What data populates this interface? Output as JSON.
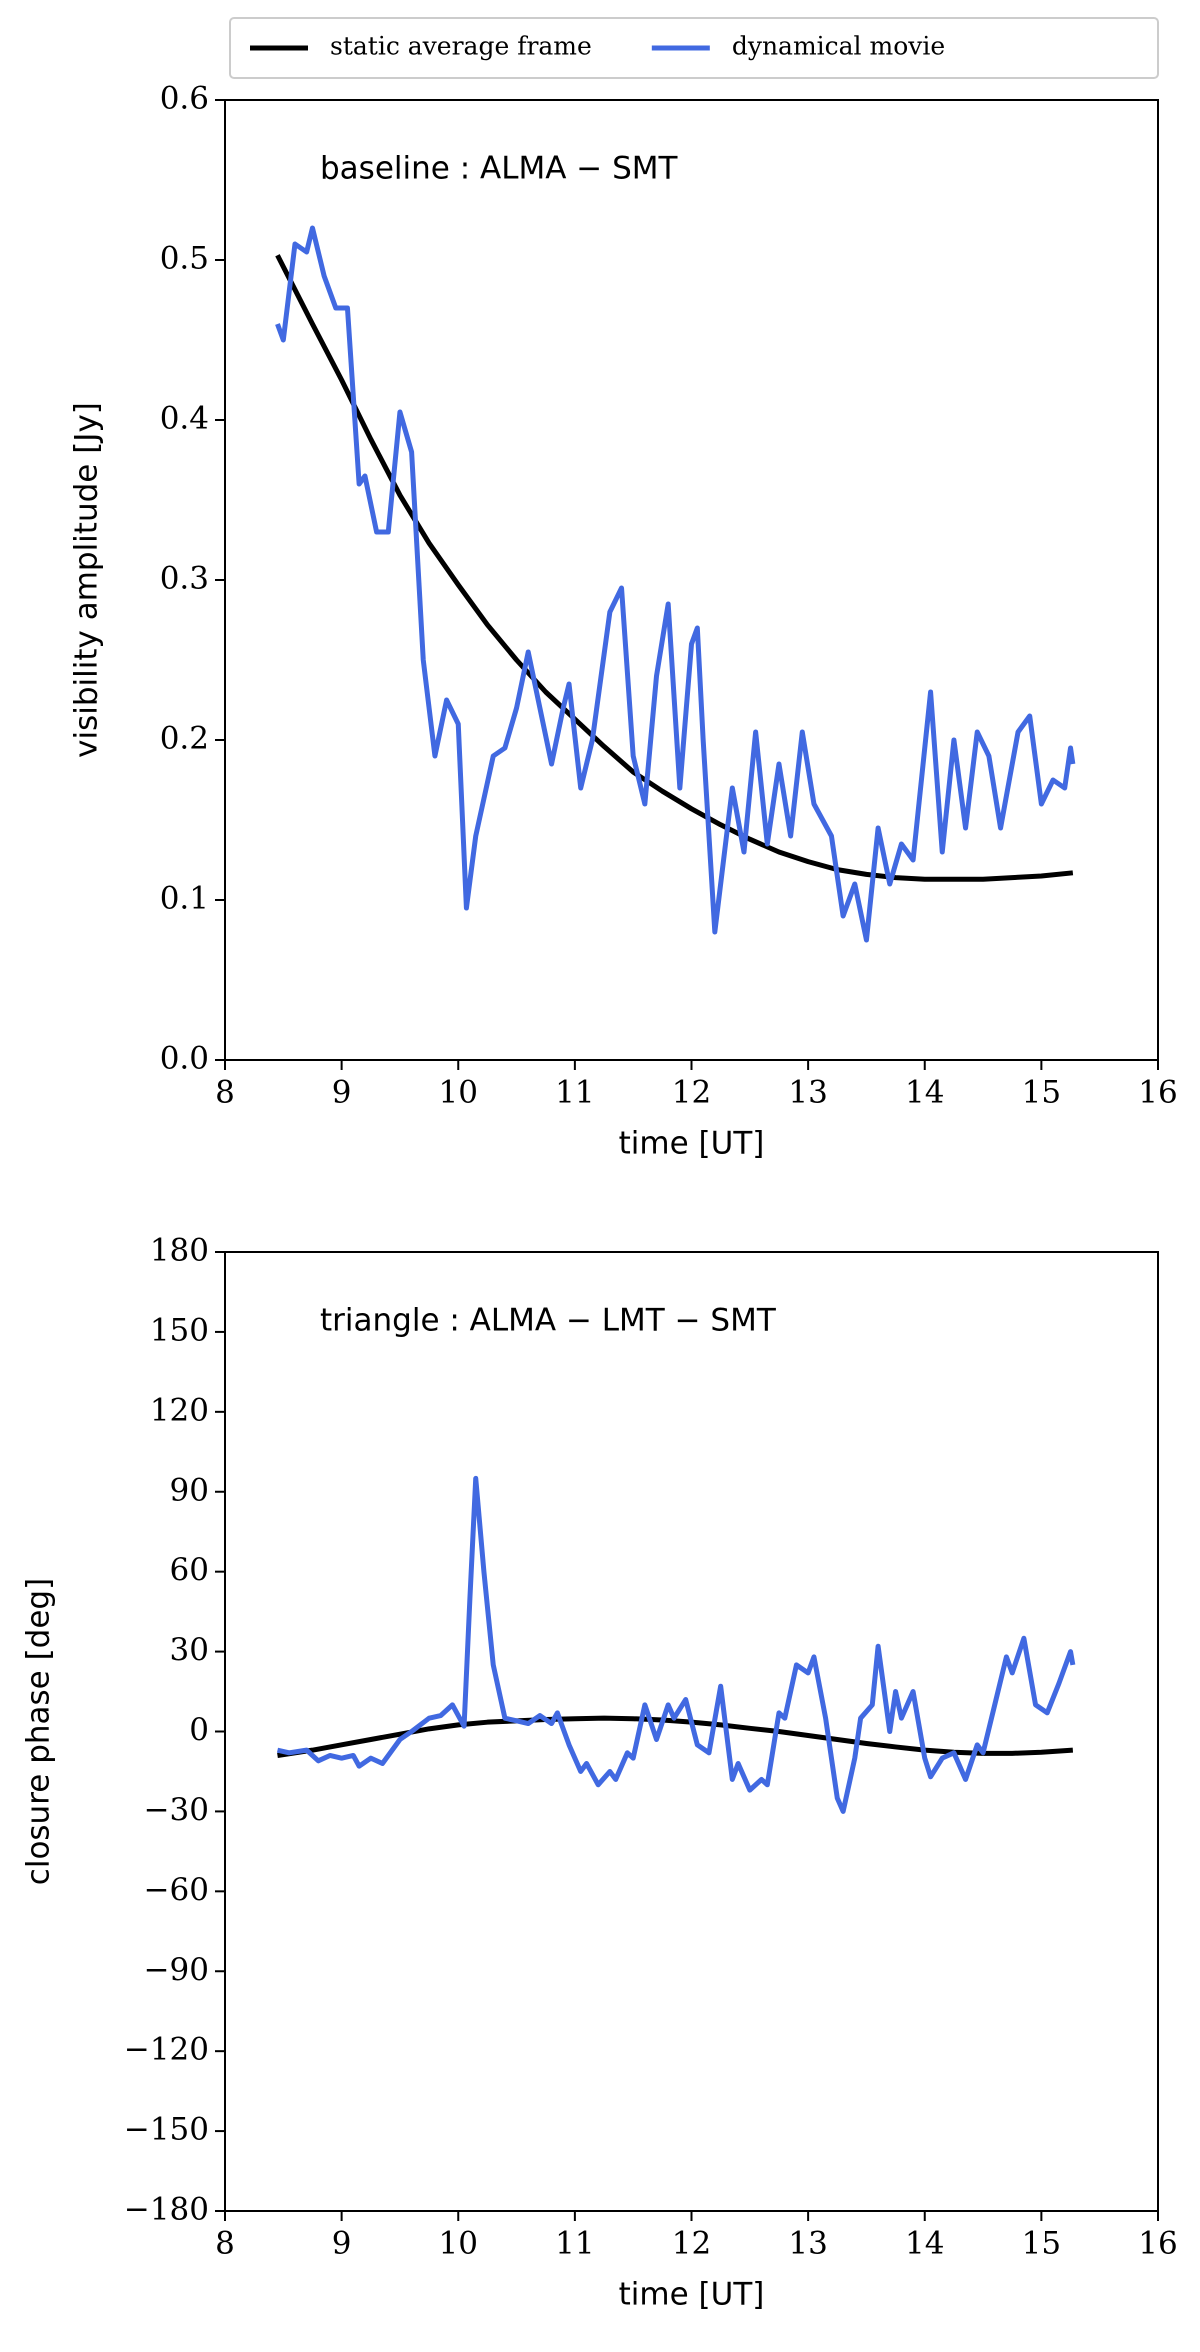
{
  "chart_data": [
    {
      "type": "line",
      "annotation": "baseline : ALMA − SMT",
      "x_label": "time [UT]",
      "y_label": "visibility amplitude [Jy]",
      "xlim": [
        8,
        16
      ],
      "xticks": [
        8,
        9,
        10,
        11,
        12,
        13,
        14,
        15,
        16
      ],
      "ylim": [
        0,
        0.6
      ],
      "yticks": [
        {
          "value": 0,
          "label": "0.0"
        },
        0.1,
        0.2,
        0.3,
        0.4,
        0.5,
        0.6
      ],
      "legend": "top",
      "series": [
        {
          "name": "static average frame",
          "color": "#000000",
          "x": [
            8.45,
            8.75,
            9,
            9.25,
            9.5,
            9.75,
            10,
            10.25,
            10.5,
            10.75,
            11,
            11.25,
            11.5,
            11.75,
            12,
            12.25,
            12.5,
            12.75,
            13,
            13.25,
            13.5,
            13.75,
            14,
            14.25,
            14.5,
            14.75,
            15,
            15.27
          ],
          "values": [
            0.503,
            0.46,
            0.425,
            0.388,
            0.353,
            0.323,
            0.297,
            0.272,
            0.25,
            0.23,
            0.213,
            0.196,
            0.18,
            0.168,
            0.157,
            0.147,
            0.138,
            0.13,
            0.124,
            0.119,
            0.116,
            0.114,
            0.113,
            0.113,
            0.113,
            0.114,
            0.115,
            0.117
          ]
        },
        {
          "name": "dynamical movie",
          "color": "#4169e1",
          "x": [
            8.45,
            8.5,
            8.6,
            8.7,
            8.75,
            8.85,
            8.95,
            9.05,
            9.15,
            9.2,
            9.3,
            9.4,
            9.5,
            9.6,
            9.7,
            9.8,
            9.9,
            10.0,
            10.07,
            10.15,
            10.3,
            10.4,
            10.5,
            10.6,
            10.7,
            10.8,
            10.9,
            10.95,
            11.05,
            11.15,
            11.3,
            11.4,
            11.5,
            11.6,
            11.7,
            11.8,
            11.9,
            12.0,
            12.05,
            12.1,
            12.2,
            12.35,
            12.45,
            12.55,
            12.65,
            12.75,
            12.85,
            12.95,
            13.05,
            13.2,
            13.3,
            13.4,
            13.5,
            13.6,
            13.7,
            13.8,
            13.9,
            14.05,
            14.15,
            14.25,
            14.35,
            14.45,
            14.55,
            14.65,
            14.8,
            14.9,
            15.0,
            15.1,
            15.2,
            15.25,
            15.27
          ],
          "values": [
            0.46,
            0.45,
            0.51,
            0.505,
            0.52,
            0.49,
            0.47,
            0.47,
            0.36,
            0.365,
            0.33,
            0.33,
            0.405,
            0.38,
            0.25,
            0.19,
            0.225,
            0.21,
            0.095,
            0.14,
            0.19,
            0.195,
            0.22,
            0.255,
            0.22,
            0.185,
            0.22,
            0.235,
            0.17,
            0.2,
            0.28,
            0.295,
            0.19,
            0.16,
            0.24,
            0.285,
            0.17,
            0.26,
            0.27,
            0.2,
            0.08,
            0.17,
            0.13,
            0.205,
            0.135,
            0.185,
            0.14,
            0.205,
            0.16,
            0.14,
            0.09,
            0.11,
            0.075,
            0.145,
            0.11,
            0.135,
            0.125,
            0.23,
            0.13,
            0.2,
            0.145,
            0.205,
            0.19,
            0.145,
            0.205,
            0.215,
            0.16,
            0.175,
            0.17,
            0.195,
            0.185
          ]
        }
      ]
    },
    {
      "type": "line",
      "annotation": "triangle : ALMA − LMT − SMT",
      "x_label": "time [UT]",
      "y_label": "closure phase [deg]",
      "xlim": [
        8,
        16
      ],
      "xticks": [
        8,
        9,
        10,
        11,
        12,
        13,
        14,
        15,
        16
      ],
      "ylim": [
        -180,
        180
      ],
      "yticks": [
        {
          "value": -180,
          "label": "−180"
        },
        {
          "value": -150,
          "label": "−150"
        },
        {
          "value": -120,
          "label": "−120"
        },
        {
          "value": -90,
          "label": "−90"
        },
        {
          "value": -60,
          "label": "−60"
        },
        {
          "value": -30,
          "label": "−30"
        },
        0,
        30,
        60,
        90,
        120,
        150,
        180
      ],
      "series": [
        {
          "color": "#000000",
          "x": [
            8.45,
            8.75,
            9,
            9.25,
            9.5,
            9.75,
            10,
            10.25,
            10.5,
            10.75,
            11,
            11.25,
            11.5,
            11.75,
            12,
            12.25,
            12.5,
            12.75,
            13,
            13.25,
            13.5,
            13.75,
            14,
            14.25,
            14.5,
            14.75,
            15,
            15.27
          ],
          "values": [
            -9,
            -7,
            -5,
            -3,
            -1,
            1,
            2.5,
            3.5,
            4,
            4.5,
            4.8,
            5,
            4.8,
            4.3,
            3.5,
            2.5,
            1.2,
            0,
            -1.5,
            -3,
            -4.5,
            -5.8,
            -7,
            -7.8,
            -8.2,
            -8.2,
            -7.8,
            -7
          ]
        },
        {
          "color": "#4169e1",
          "x": [
            8.45,
            8.55,
            8.7,
            8.8,
            8.9,
            9.0,
            9.1,
            9.15,
            9.25,
            9.35,
            9.5,
            9.6,
            9.75,
            9.85,
            9.95,
            10.05,
            10.1,
            10.15,
            10.22,
            10.3,
            10.4,
            10.5,
            10.6,
            10.7,
            10.8,
            10.85,
            10.95,
            11.05,
            11.1,
            11.2,
            11.3,
            11.35,
            11.45,
            11.5,
            11.6,
            11.7,
            11.8,
            11.85,
            11.95,
            12.05,
            12.15,
            12.25,
            12.35,
            12.4,
            12.5,
            12.6,
            12.65,
            12.75,
            12.8,
            12.9,
            13.0,
            13.05,
            13.15,
            13.25,
            13.3,
            13.4,
            13.45,
            13.55,
            13.6,
            13.7,
            13.75,
            13.8,
            13.9,
            14.0,
            14.05,
            14.15,
            14.25,
            14.35,
            14.45,
            14.5,
            14.6,
            14.7,
            14.75,
            14.85,
            14.95,
            15.05,
            15.15,
            15.25,
            15.27
          ],
          "values": [
            -7,
            -8,
            -7,
            -11,
            -9,
            -10,
            -9,
            -13,
            -10,
            -12,
            -3,
            0,
            5,
            6,
            10,
            2,
            50,
            95,
            60,
            25,
            5,
            4,
            3,
            6,
            3,
            7,
            -5,
            -15,
            -12,
            -20,
            -15,
            -18,
            -8,
            -10,
            10,
            -3,
            10,
            5,
            12,
            -5,
            -8,
            17,
            -18,
            -12,
            -22,
            -18,
            -20,
            7,
            5,
            25,
            22,
            28,
            5,
            -25,
            -30,
            -10,
            5,
            10,
            32,
            0,
            15,
            5,
            15,
            -10,
            -17,
            -10,
            -8,
            -18,
            -5,
            -8,
            10,
            28,
            22,
            35,
            10,
            7,
            18,
            30,
            25
          ]
        }
      ]
    }
  ]
}
